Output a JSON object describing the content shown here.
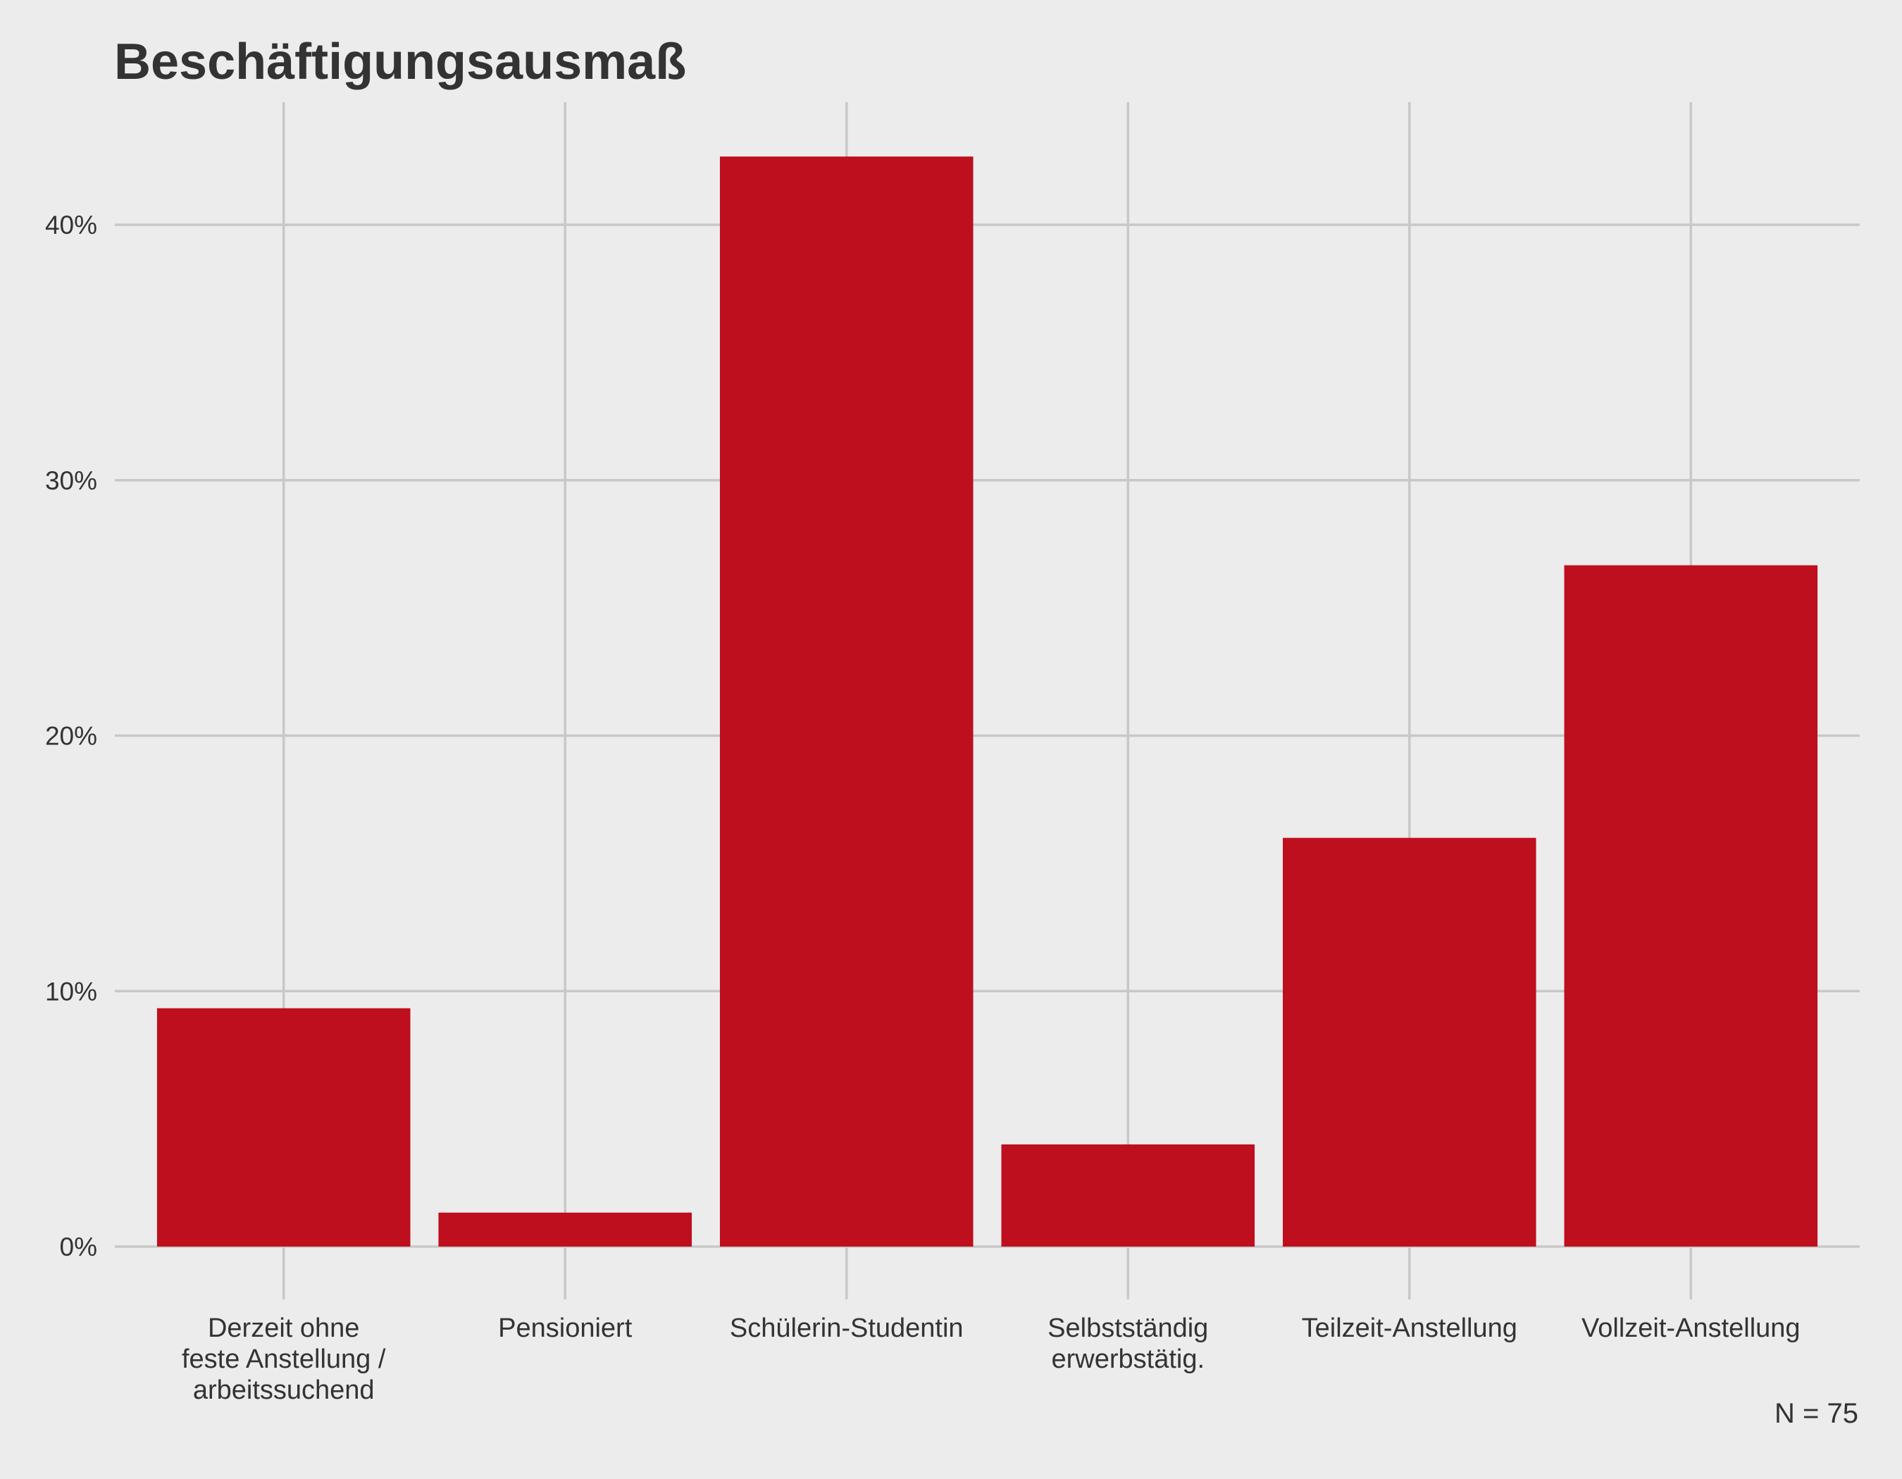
{
  "chart_data": {
    "type": "bar",
    "title": "Beschäftigungsausmaß",
    "xlabel": "",
    "ylabel": "",
    "categories": [
      [
        "Derzeit ohne",
        "feste Anstellung /",
        "arbeitssuchend"
      ],
      [
        "Pensioniert"
      ],
      [
        "Schülerin-Studentin"
      ],
      [
        "Selbstständig",
        "erwerbstätig."
      ],
      [
        "Teilzeit-Anstellung"
      ],
      [
        "Vollzeit-Anstellung"
      ]
    ],
    "values": [
      9.33,
      1.33,
      42.67,
      4.0,
      16.0,
      26.67
    ],
    "yticks": [
      0,
      10,
      20,
      30,
      40
    ],
    "ytick_labels": [
      "0%",
      "10%",
      "20%",
      "30%",
      "40%"
    ],
    "ylim": [
      0,
      44.8
    ],
    "caption": "N = 75",
    "grid": true,
    "legend": "none",
    "colors": {
      "bar": "#be0f1e",
      "grid": "#c8c8c8",
      "background": "#ececec",
      "text": "#333333"
    }
  }
}
